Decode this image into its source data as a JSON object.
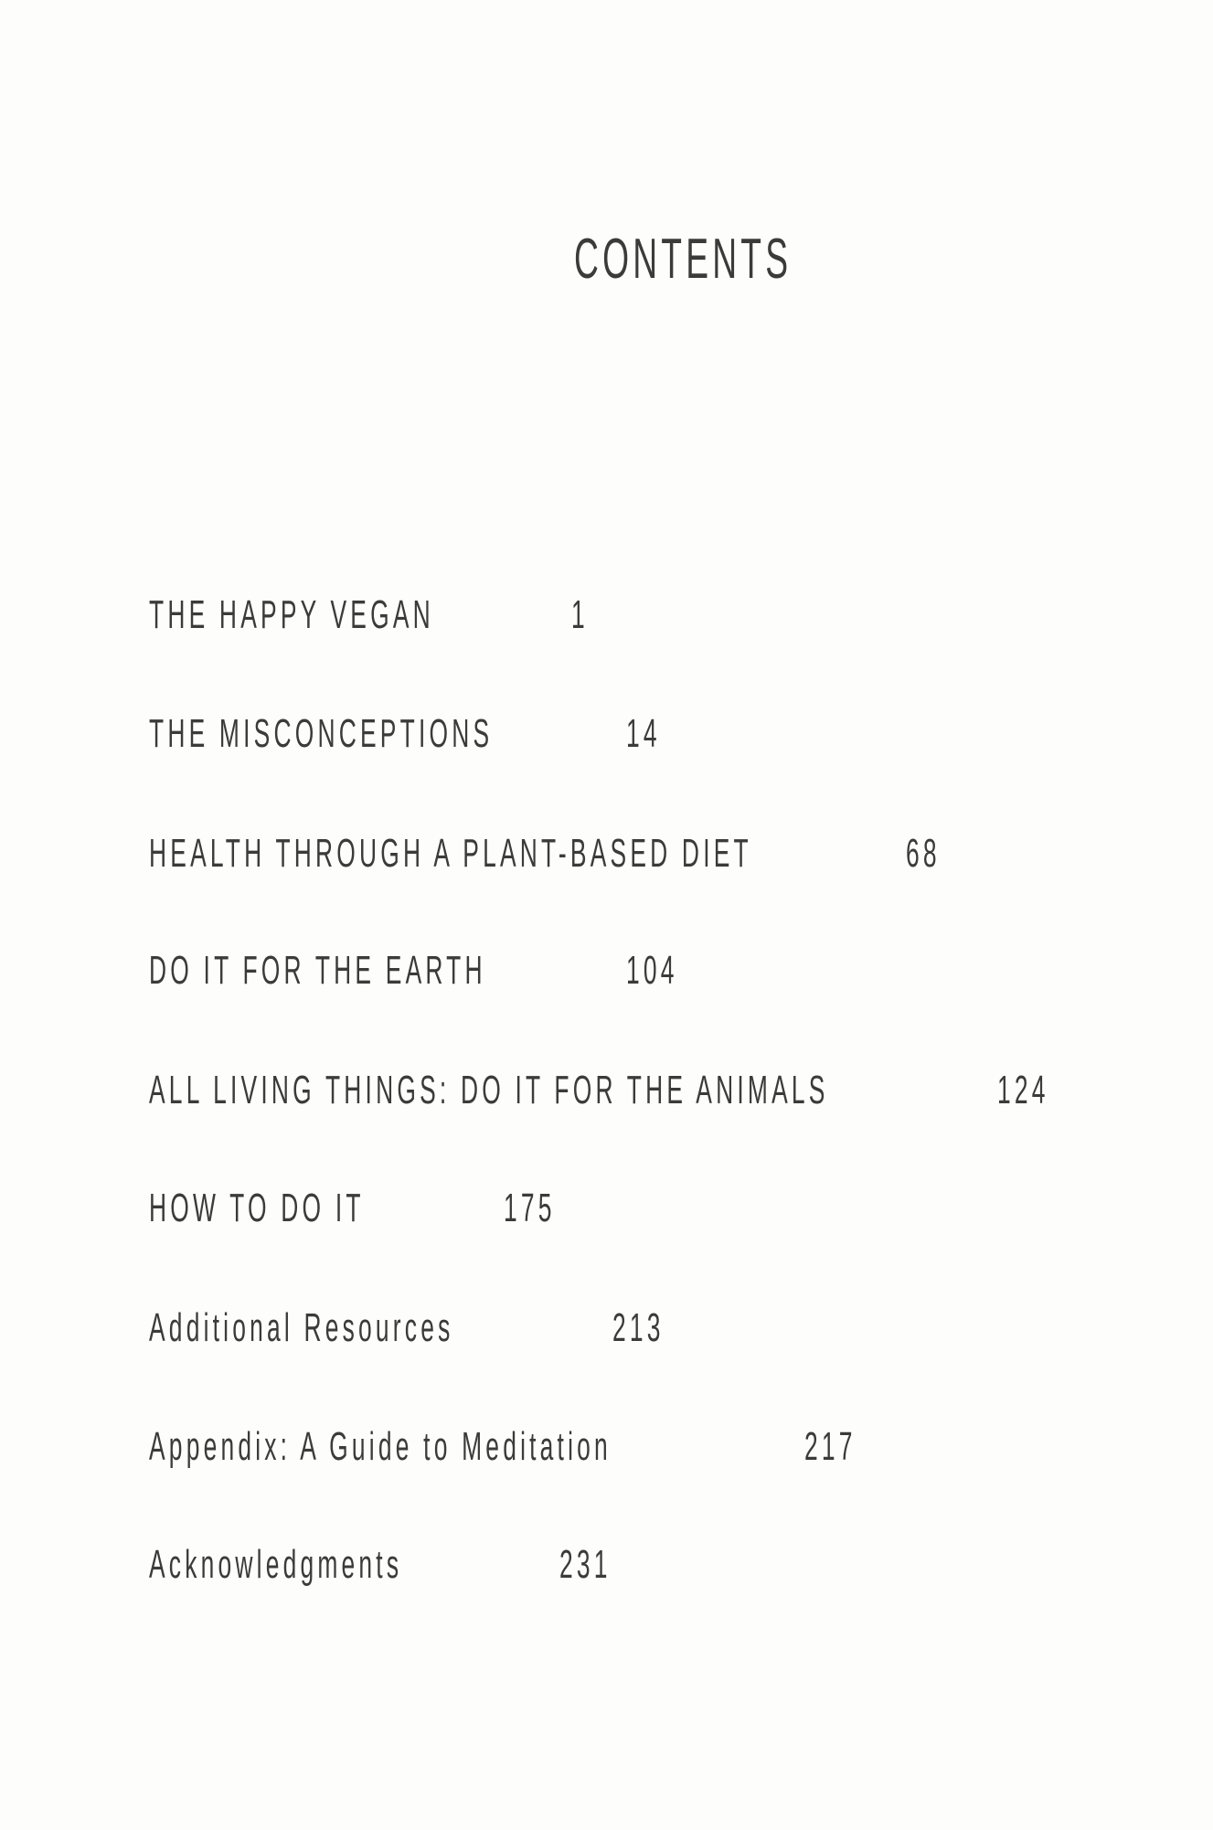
{
  "title": "CONTENTS",
  "entries": [
    {
      "label": "THE HAPPY VEGAN",
      "page": "1"
    },
    {
      "label": "THE MISCONCEPTIONS",
      "page": "14"
    },
    {
      "label": "HEALTH THROUGH A PLANT-BASED DIET",
      "page": "68"
    },
    {
      "label": "DO IT FOR THE EARTH",
      "page": "104"
    },
    {
      "label": "ALL LIVING THINGS: DO IT FOR THE ANIMALS",
      "page": "124"
    },
    {
      "label": "HOW TO DO IT",
      "page": "175"
    },
    {
      "label": "Additional Resources",
      "page": "213"
    },
    {
      "label": "Appendix: A Guide to Meditation",
      "page": "217"
    },
    {
      "label": "Acknowledgments",
      "page": "231"
    }
  ]
}
